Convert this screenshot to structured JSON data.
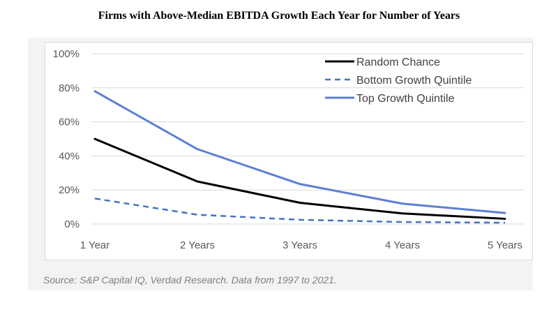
{
  "chart_data": {
    "type": "line",
    "title": "Firms with Above-Median EBITDA Growth Each Year for Number of Years",
    "categories": [
      "1 Year",
      "2 Years",
      "3 Years",
      "4 Years",
      "5 Years"
    ],
    "ylim": [
      0,
      100
    ],
    "yticks": [
      "0%",
      "20%",
      "40%",
      "60%",
      "80%",
      "100%"
    ],
    "grid": true,
    "legend_position": "top-right",
    "series": [
      {
        "name": "Random Chance",
        "values": [
          50,
          25,
          12.5,
          6.25,
          3.1
        ],
        "color": "#000000",
        "dashed": false
      },
      {
        "name": "Bottom Growth Quintile",
        "values": [
          15,
          5.5,
          2.5,
          1.2,
          0.8
        ],
        "color": "#4472c4",
        "dashed": true
      },
      {
        "name": "Top Growth Quintile",
        "values": [
          78,
          44,
          23.5,
          12,
          6.5
        ],
        "color": "#5b7fd3",
        "dashed": false
      }
    ],
    "source": "Source: S&P Capital IQ, Verdad Research. Data from 1997 to 2021."
  }
}
